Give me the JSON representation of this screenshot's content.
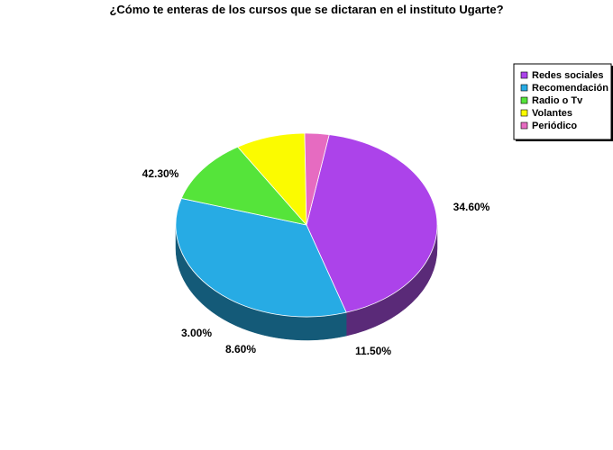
{
  "chart_data": {
    "type": "pie",
    "title": "¿Cómo te enteras de los cursos que se dictaran en el instituto Ugarte?",
    "legend_position": "top-right",
    "slices": [
      {
        "name": "Redes sociales",
        "value": 42.3,
        "label": "42.30%",
        "color": "#ac43ea",
        "side": "#5a2a78"
      },
      {
        "name": "Recomendación",
        "value": 34.6,
        "label": "34.60%",
        "color": "#27abe4",
        "side": "#145a78"
      },
      {
        "name": "Radio o Tv",
        "value": 11.5,
        "label": "11.50%",
        "color": "#55e43a",
        "side": "#2e8a1f"
      },
      {
        "name": "Volantes",
        "value": 8.6,
        "label": "8.60%",
        "color": "#fbfb00",
        "side": "#8a8a10"
      },
      {
        "name": "Periódico",
        "value": 3.0,
        "label": "3.00%",
        "color": "#e66bc1",
        "side": "#7a3066"
      }
    ]
  }
}
